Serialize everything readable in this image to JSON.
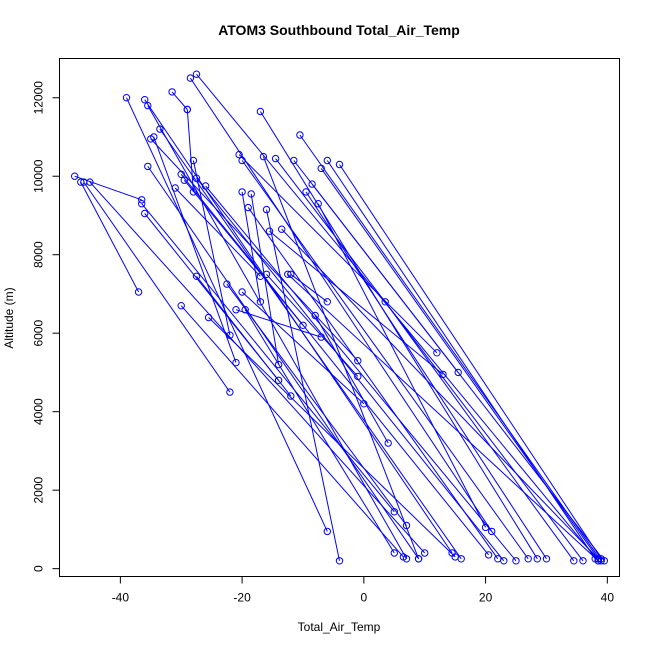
{
  "chart_data": {
    "type": "line",
    "title": "ATOM3 Southbound Total_Air_Temp",
    "xlabel": "Total_Air_Temp",
    "ylabel": "Altitude (m)",
    "xlim": [
      -50,
      42
    ],
    "ylim": [
      -200,
      13000
    ],
    "xticks": [
      -40,
      -20,
      0,
      20,
      40
    ],
    "yticks": [
      0,
      2000,
      4000,
      6000,
      8000,
      10000,
      12000
    ],
    "grid": false,
    "color": "#0000ff",
    "series": [
      {
        "x": [
          -46.5,
          -37.0
        ],
        "y": [
          9850,
          7050
        ]
      },
      {
        "x": [
          -46.0,
          -22.0
        ],
        "y": [
          9850,
          4500
        ]
      },
      {
        "x": [
          -45.0,
          10.0
        ],
        "y": [
          9850,
          400
        ]
      },
      {
        "x": [
          -47.5,
          -36.5
        ],
        "y": [
          10000,
          9400
        ]
      },
      {
        "x": [
          -36.5,
          5.0
        ],
        "y": [
          9300,
          1450
        ]
      },
      {
        "x": [
          -36.0,
          -14.0
        ],
        "y": [
          9050,
          4800
        ]
      },
      {
        "x": [
          -39.0,
          -6.0
        ],
        "y": [
          12000,
          950
        ]
      },
      {
        "x": [
          -36.0,
          14.5
        ],
        "y": [
          11950,
          400
        ]
      },
      {
        "x": [
          -35.5,
          7.0
        ],
        "y": [
          11800,
          250
        ]
      },
      {
        "x": [
          -35.0,
          -1.0
        ],
        "y": [
          10950,
          5300
        ]
      },
      {
        "x": [
          -34.5,
          -21.0
        ],
        "y": [
          11000,
          5250
        ]
      },
      {
        "x": [
          -33.5,
          16.0
        ],
        "y": [
          11200,
          250
        ]
      },
      {
        "x": [
          -31.5,
          -29.0
        ],
        "y": [
          12150,
          11700
        ]
      },
      {
        "x": [
          -29.0,
          -28.0
        ],
        "y": [
          11700,
          9600
        ]
      },
      {
        "x": [
          -28.5,
          21.0
        ],
        "y": [
          12500,
          950
        ]
      },
      {
        "x": [
          -27.5,
          38.5
        ],
        "y": [
          12600,
          200
        ]
      },
      {
        "x": [
          -35.5,
          9.0
        ],
        "y": [
          10250,
          250
        ]
      },
      {
        "x": [
          -31.0,
          -17.0
        ],
        "y": [
          9700,
          7450
        ]
      },
      {
        "x": [
          -30.0,
          20.5
        ],
        "y": [
          10050,
          350
        ]
      },
      {
        "x": [
          -29.5,
          -10.0
        ],
        "y": [
          9900,
          6200
        ]
      },
      {
        "x": [
          -28.0,
          -22.0
        ],
        "y": [
          10400,
          5950
        ]
      },
      {
        "x": [
          -27.5,
          23.0
        ],
        "y": [
          9950,
          200
        ]
      },
      {
        "x": [
          -26.0,
          25.0
        ],
        "y": [
          9750,
          200
        ]
      },
      {
        "x": [
          -30.0,
          6.5
        ],
        "y": [
          6700,
          300
        ]
      },
      {
        "x": [
          -25.5,
          15.0
        ],
        "y": [
          6400,
          300
        ]
      },
      {
        "x": [
          -27.5,
          -12.0
        ],
        "y": [
          7450,
          4400
        ]
      },
      {
        "x": [
          -20.5,
          12.0
        ],
        "y": [
          10550,
          5500
        ]
      },
      {
        "x": [
          -20.0,
          27.0
        ],
        "y": [
          10400,
          250
        ]
      },
      {
        "x": [
          -19.0,
          22.0
        ],
        "y": [
          9200,
          250
        ]
      },
      {
        "x": [
          -20.0,
          -17.0
        ],
        "y": [
          9600,
          6800
        ]
      },
      {
        "x": [
          -18.5,
          -14.0
        ],
        "y": [
          9550,
          5200
        ]
      },
      {
        "x": [
          -17.0,
          28.5
        ],
        "y": [
          11650,
          250
        ]
      },
      {
        "x": [
          -16.5,
          9.0
        ],
        "y": [
          10500,
          250
        ]
      },
      {
        "x": [
          -16.0,
          -4.0
        ],
        "y": [
          9150,
          200
        ]
      },
      {
        "x": [
          -16.0,
          -1.0
        ],
        "y": [
          7500,
          4900
        ]
      },
      {
        "x": [
          -15.5,
          13.0
        ],
        "y": [
          8600,
          4950
        ]
      },
      {
        "x": [
          -14.5,
          36.0
        ],
        "y": [
          10450,
          200
        ]
      },
      {
        "x": [
          -13.5,
          38.5
        ],
        "y": [
          8650,
          250
        ]
      },
      {
        "x": [
          -12.5,
          38.5
        ],
        "y": [
          7500,
          200
        ]
      },
      {
        "x": [
          -12.0,
          -6.0
        ],
        "y": [
          7500,
          6800
        ]
      },
      {
        "x": [
          -11.5,
          15.5
        ],
        "y": [
          10400,
          5000
        ]
      },
      {
        "x": [
          -10.5,
          39.0
        ],
        "y": [
          11050,
          200
        ]
      },
      {
        "x": [
          -9.5,
          30.0
        ],
        "y": [
          9600,
          250
        ]
      },
      {
        "x": [
          -8.5,
          39.5
        ],
        "y": [
          9800,
          200
        ]
      },
      {
        "x": [
          -7.5,
          20.0
        ],
        "y": [
          9300,
          1050
        ]
      },
      {
        "x": [
          -7.0,
          38.5
        ],
        "y": [
          10200,
          250
        ]
      },
      {
        "x": [
          -6.0,
          38.0
        ],
        "y": [
          10400,
          250
        ]
      },
      {
        "x": [
          -4.0,
          39.0
        ],
        "y": [
          10300,
          250
        ]
      },
      {
        "x": [
          -22.5,
          7.0
        ],
        "y": [
          7250,
          1100
        ]
      },
      {
        "x": [
          -21.0,
          -7.0
        ],
        "y": [
          6600,
          5900
        ]
      },
      {
        "x": [
          -20.0,
          0.0
        ],
        "y": [
          7050,
          4200
        ]
      },
      {
        "x": [
          -19.5,
          5.0
        ],
        "y": [
          6600,
          400
        ]
      },
      {
        "x": [
          -8.0,
          4.0
        ],
        "y": [
          6450,
          3200
        ]
      },
      {
        "x": [
          3.5,
          34.5
        ],
        "y": [
          6800,
          200
        ]
      }
    ]
  }
}
